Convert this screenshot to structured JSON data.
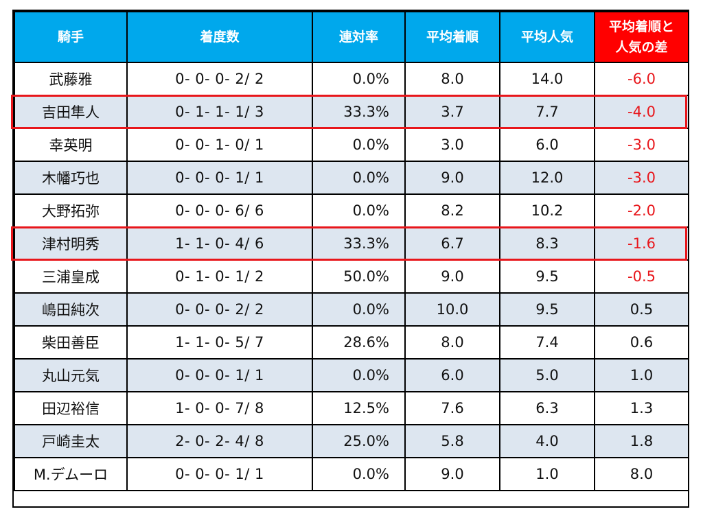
{
  "table": {
    "headers": {
      "jockey": "騎手",
      "record": "着度数",
      "rate": "連対率",
      "avg_rank": "平均着順",
      "avg_pop": "平均人気",
      "diff_line1": "平均着順と",
      "diff_line2": "人気の差"
    },
    "rows": [
      {
        "jockey": "武藤雅",
        "record": "0- 0- 0- 2/ 2",
        "rate": "0.0%",
        "avg_rank": "8.0",
        "avg_pop": "14.0",
        "diff": "-6.0",
        "negative": true,
        "highlighted": false
      },
      {
        "jockey": "吉田隼人",
        "record": "0- 1- 1- 1/ 3",
        "rate": "33.3%",
        "avg_rank": "3.7",
        "avg_pop": "7.7",
        "diff": "-4.0",
        "negative": true,
        "highlighted": true
      },
      {
        "jockey": "幸英明",
        "record": "0- 0- 1- 0/ 1",
        "rate": "0.0%",
        "avg_rank": "3.0",
        "avg_pop": "6.0",
        "diff": "-3.0",
        "negative": true,
        "highlighted": false
      },
      {
        "jockey": "木幡巧也",
        "record": "0- 0- 0- 1/ 1",
        "rate": "0.0%",
        "avg_rank": "9.0",
        "avg_pop": "12.0",
        "diff": "-3.0",
        "negative": true,
        "highlighted": false
      },
      {
        "jockey": "大野拓弥",
        "record": "0- 0- 0- 6/ 6",
        "rate": "0.0%",
        "avg_rank": "8.2",
        "avg_pop": "10.2",
        "diff": "-2.0",
        "negative": true,
        "highlighted": false
      },
      {
        "jockey": "津村明秀",
        "record": "1- 1- 0- 4/ 6",
        "rate": "33.3%",
        "avg_rank": "6.7",
        "avg_pop": "8.3",
        "diff": "-1.6",
        "negative": true,
        "highlighted": true
      },
      {
        "jockey": "三浦皇成",
        "record": "0- 1- 0- 1/ 2",
        "rate": "50.0%",
        "avg_rank": "9.0",
        "avg_pop": "9.5",
        "diff": "-0.5",
        "negative": true,
        "highlighted": false
      },
      {
        "jockey": "嶋田純次",
        "record": "0- 0- 0- 2/ 2",
        "rate": "0.0%",
        "avg_rank": "10.0",
        "avg_pop": "9.5",
        "diff": "0.5",
        "negative": false,
        "highlighted": false
      },
      {
        "jockey": "柴田善臣",
        "record": "1- 1- 0- 5/ 7",
        "rate": "28.6%",
        "avg_rank": "8.0",
        "avg_pop": "7.4",
        "diff": "0.6",
        "negative": false,
        "highlighted": false
      },
      {
        "jockey": "丸山元気",
        "record": "0- 0- 0- 1/ 1",
        "rate": "0.0%",
        "avg_rank": "6.0",
        "avg_pop": "5.0",
        "diff": "1.0",
        "negative": false,
        "highlighted": false
      },
      {
        "jockey": "田辺裕信",
        "record": "1- 0- 0- 7/ 8",
        "rate": "12.5%",
        "avg_rank": "7.6",
        "avg_pop": "6.3",
        "diff": "1.3",
        "negative": false,
        "highlighted": false
      },
      {
        "jockey": "戸崎圭太",
        "record": "2- 0- 2- 4/ 8",
        "rate": "25.0%",
        "avg_rank": "5.8",
        "avg_pop": "4.0",
        "diff": "1.8",
        "negative": false,
        "highlighted": false
      },
      {
        "jockey": "M.デムーロ",
        "record": "0- 0- 0- 1/ 1",
        "rate": "0.0%",
        "avg_rank": "9.0",
        "avg_pop": "1.0",
        "diff": "8.0",
        "negative": false,
        "highlighted": false
      }
    ]
  },
  "colors": {
    "header_bg": "#00a8ec",
    "diff_header_bg": "#ff0000",
    "stripe_bg": "#dde6f0",
    "negative_text": "#e8161b",
    "highlight_border": "#e8161b"
  }
}
